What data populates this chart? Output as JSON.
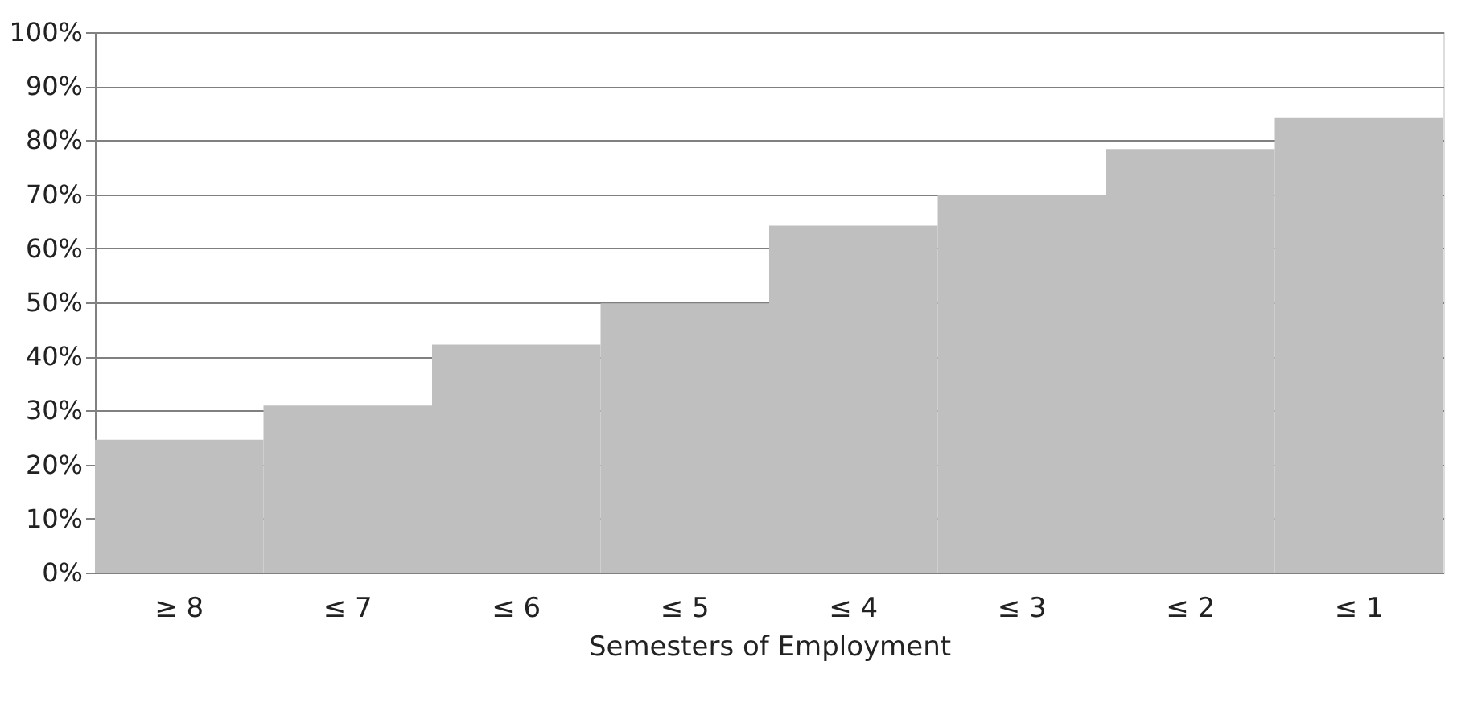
{
  "chart_data": {
    "type": "bar",
    "xlabel": "Semesters of Employment",
    "categories": [
      "≥ 8",
      "≤ 7",
      "≤ 6",
      "≤ 5",
      "≤ 4",
      "≤ 3",
      "≤ 2",
      "≤ 1"
    ],
    "values": [
      24.6,
      30.9,
      42.2,
      49.8,
      64.2,
      69.8,
      78.4,
      84.1
    ],
    "color": "#bfbfbf",
    "ylim": [
      0,
      100
    ],
    "yticks": [
      {
        "value": 0,
        "label": "0%"
      },
      {
        "value": 10,
        "label": "10%"
      },
      {
        "value": 20,
        "label": "20%"
      },
      {
        "value": 30,
        "label": "30%"
      },
      {
        "value": 40,
        "label": "40%"
      },
      {
        "value": 50,
        "label": "50%"
      },
      {
        "value": 60,
        "label": "60%"
      },
      {
        "value": 70,
        "label": "70%"
      },
      {
        "value": 80,
        "label": "80%"
      },
      {
        "value": 90,
        "label": "90%"
      },
      {
        "value": 100,
        "label": "100%"
      }
    ],
    "grid": "y"
  }
}
